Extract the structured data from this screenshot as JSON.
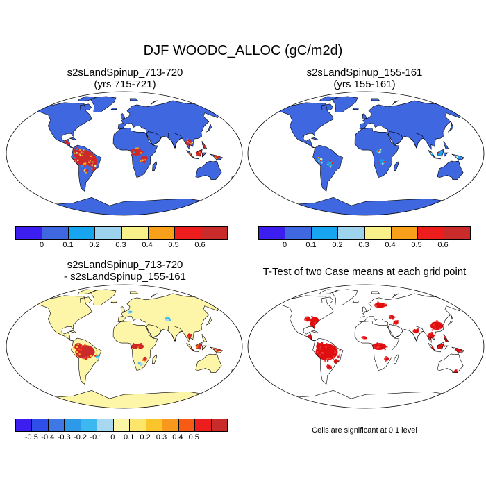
{
  "figure_title": "DJF WOODC_ALLOC (gC/m2d)",
  "panels": {
    "top_left": {
      "title_line1": "s2sLandSpinup_713-720",
      "title_line2": "(yrs 715-721)"
    },
    "top_right": {
      "title_line1": "s2sLandSpinup_155-161",
      "title_line2": "(yrs 155-161)"
    },
    "bottom_left": {
      "title_line1": "s2sLandSpinup_713-720",
      "title_line2": "- s2sLandSpinup_155-161"
    },
    "bottom_right": {
      "title_line1": "T-Test of two Case means at each grid point"
    }
  },
  "colorbar_main": {
    "colors": [
      "#3c1ef0",
      "#3f67e0",
      "#16a5ee",
      "#9ed3ee",
      "#f8f18a",
      "#f9a01a",
      "#ee1d1d",
      "#c92a2a"
    ],
    "labels": [
      "0",
      "0.1",
      "0.2",
      "0.3",
      "0.4",
      "0.5",
      "0.6"
    ]
  },
  "colorbar_diff": {
    "colors": [
      "#3c1ef0",
      "#2f4de8",
      "#3f78e4",
      "#2c9ae8",
      "#3bb8f0",
      "#a8d8ef",
      "#fbf6a6",
      "#fbe56a",
      "#f9c52a",
      "#f8981c",
      "#f65a14",
      "#ee1d1d",
      "#c92a2a"
    ],
    "labels": [
      "-0.5",
      "-0.4",
      "-0.3",
      "-0.2",
      "-0.1",
      "0",
      "0.1",
      "0.2",
      "0.3",
      "0.4",
      "0.5"
    ]
  },
  "significance_note": "Cells are significant at 0.1 level",
  "map_colors": {
    "ocean": "#ffffff",
    "land_low": "#3f67e0",
    "diff_base": "#fdf5a8",
    "signif": "#e00f0f",
    "coast": "#000000"
  }
}
